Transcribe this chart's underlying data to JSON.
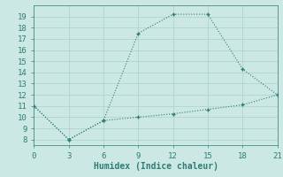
{
  "xlabel": "Humidex (Indice chaleur)",
  "line1_x": [
    0,
    3,
    6,
    9,
    12,
    15,
    18,
    21
  ],
  "line1_y": [
    11,
    8,
    9.7,
    17.5,
    19.2,
    19.2,
    14.3,
    12
  ],
  "line2_x": [
    0,
    3,
    6,
    9,
    12,
    15,
    18,
    21
  ],
  "line2_y": [
    11,
    8,
    9.7,
    10.0,
    10.3,
    10.7,
    11.1,
    12
  ],
  "line_color": "#2e7d72",
  "bg_color": "#cce8e4",
  "grid_color": "#b0d4cf",
  "xlim": [
    0,
    21
  ],
  "ylim": [
    7.5,
    20
  ],
  "xticks": [
    0,
    3,
    6,
    9,
    12,
    15,
    18,
    21
  ],
  "yticks": [
    8,
    9,
    10,
    11,
    12,
    13,
    14,
    15,
    16,
    17,
    18,
    19
  ],
  "marker": "+"
}
